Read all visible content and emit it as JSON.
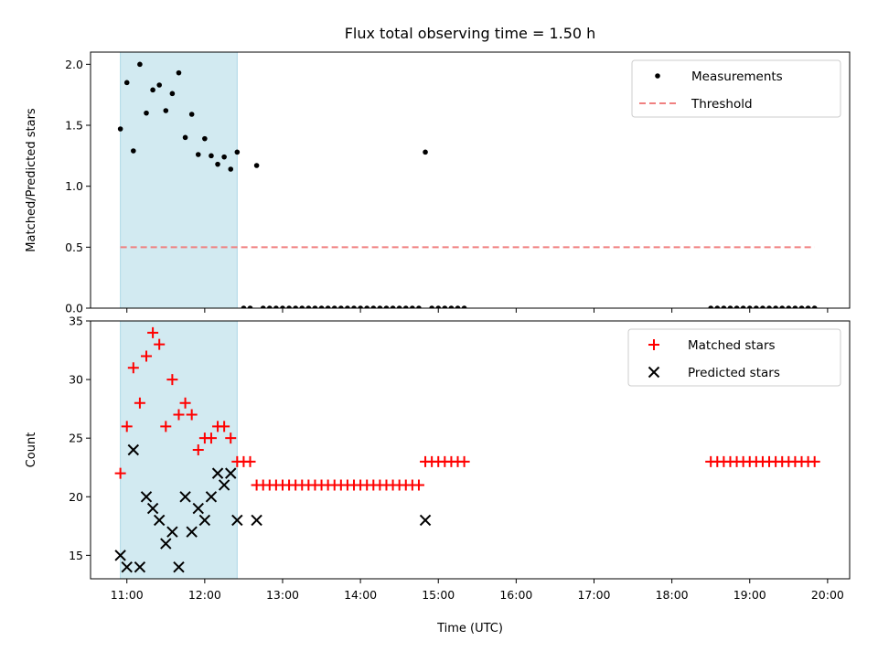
{
  "figure": {
    "title": "Flux total observing time = 1.50 h"
  },
  "chart_data": [
    {
      "type": "scatter",
      "ylabel": "Matched/Predicted stars",
      "xlabel": "",
      "x_ticks": [
        "11:00",
        "12:00",
        "13:00",
        "14:00",
        "15:00",
        "16:00",
        "17:00",
        "18:00",
        "19:00",
        "20:00"
      ],
      "y_ticks": [
        "0.0",
        "0.5",
        "1.0",
        "1.5",
        "2.0"
      ],
      "xlim": [
        "10:32",
        "20:17"
      ],
      "ylim": [
        0,
        2.1
      ],
      "legend_position": "top-right",
      "highlight_span": {
        "start": "10:55",
        "end": "12:25",
        "color": "#add8e6"
      },
      "series": [
        {
          "name": "Measurements",
          "marker": "dot",
          "color": "#000000",
          "points": [
            [
              "10:55",
              1.47
            ],
            [
              "11:00",
              1.85
            ],
            [
              "11:05",
              1.29
            ],
            [
              "11:10",
              2.0
            ],
            [
              "11:15",
              1.6
            ],
            [
              "11:20",
              1.79
            ],
            [
              "11:25",
              1.83
            ],
            [
              "11:30",
              1.62
            ],
            [
              "11:35",
              1.76
            ],
            [
              "11:40",
              1.93
            ],
            [
              "11:45",
              1.4
            ],
            [
              "11:50",
              1.59
            ],
            [
              "11:55",
              1.26
            ],
            [
              "12:00",
              1.39
            ],
            [
              "12:05",
              1.25
            ],
            [
              "12:10",
              1.18
            ],
            [
              "12:15",
              1.24
            ],
            [
              "12:20",
              1.14
            ],
            [
              "12:25",
              1.28
            ],
            [
              "12:30",
              0.0
            ],
            [
              "12:35",
              0.0
            ],
            [
              "12:40",
              1.17
            ],
            [
              "12:45",
              0.0
            ],
            [
              "12:50",
              0.0
            ],
            [
              "12:55",
              0.0
            ],
            [
              "13:00",
              0.0
            ],
            [
              "13:05",
              0.0
            ],
            [
              "13:10",
              0.0
            ],
            [
              "13:15",
              0.0
            ],
            [
              "13:20",
              0.0
            ],
            [
              "13:25",
              0.0
            ],
            [
              "13:30",
              0.0
            ],
            [
              "13:35",
              0.0
            ],
            [
              "13:40",
              0.0
            ],
            [
              "13:45",
              0.0
            ],
            [
              "13:50",
              0.0
            ],
            [
              "13:55",
              0.0
            ],
            [
              "14:00",
              0.0
            ],
            [
              "14:05",
              0.0
            ],
            [
              "14:10",
              0.0
            ],
            [
              "14:15",
              0.0
            ],
            [
              "14:20",
              0.0
            ],
            [
              "14:25",
              0.0
            ],
            [
              "14:30",
              0.0
            ],
            [
              "14:35",
              0.0
            ],
            [
              "14:40",
              0.0
            ],
            [
              "14:45",
              0.0
            ],
            [
              "14:50",
              1.28
            ],
            [
              "14:55",
              0.0
            ],
            [
              "15:00",
              0.0
            ],
            [
              "15:05",
              0.0
            ],
            [
              "15:10",
              0.0
            ],
            [
              "15:15",
              0.0
            ],
            [
              "15:20",
              0.0
            ],
            [
              "18:30",
              0.0
            ],
            [
              "18:35",
              0.0
            ],
            [
              "18:40",
              0.0
            ],
            [
              "18:45",
              0.0
            ],
            [
              "18:50",
              0.0
            ],
            [
              "18:55",
              0.0
            ],
            [
              "19:00",
              0.0
            ],
            [
              "19:05",
              0.0
            ],
            [
              "19:10",
              0.0
            ],
            [
              "19:15",
              0.0
            ],
            [
              "19:20",
              0.0
            ],
            [
              "19:25",
              0.0
            ],
            [
              "19:30",
              0.0
            ],
            [
              "19:35",
              0.0
            ],
            [
              "19:40",
              0.0
            ],
            [
              "19:45",
              0.0
            ],
            [
              "19:50",
              0.0
            ]
          ]
        },
        {
          "name": "Threshold",
          "marker": "dashed-line",
          "color": "#f08080",
          "points": [
            [
              "10:55",
              0.5
            ],
            [
              "19:50",
              0.5
            ]
          ]
        }
      ]
    },
    {
      "type": "scatter",
      "ylabel": "Count",
      "xlabel": "Time (UTC)",
      "x_ticks": [
        "11:00",
        "12:00",
        "13:00",
        "14:00",
        "15:00",
        "16:00",
        "17:00",
        "18:00",
        "19:00",
        "20:00"
      ],
      "y_ticks": [
        "15",
        "20",
        "25",
        "30",
        "35"
      ],
      "xlim": [
        "10:32",
        "20:17"
      ],
      "ylim": [
        13,
        35
      ],
      "legend_position": "top-right",
      "highlight_span": {
        "start": "10:55",
        "end": "12:25",
        "color": "#add8e6"
      },
      "series": [
        {
          "name": "Matched stars",
          "marker": "plus",
          "color": "#ff0000",
          "points": [
            [
              "10:55",
              22
            ],
            [
              "11:00",
              26
            ],
            [
              "11:05",
              31
            ],
            [
              "11:10",
              28
            ],
            [
              "11:15",
              32
            ],
            [
              "11:20",
              34
            ],
            [
              "11:25",
              33
            ],
            [
              "11:30",
              26
            ],
            [
              "11:35",
              30
            ],
            [
              "11:40",
              27
            ],
            [
              "11:45",
              28
            ],
            [
              "11:50",
              27
            ],
            [
              "11:55",
              24
            ],
            [
              "12:00",
              25
            ],
            [
              "12:05",
              25
            ],
            [
              "12:10",
              26
            ],
            [
              "12:15",
              26
            ],
            [
              "12:20",
              25
            ],
            [
              "12:25",
              23
            ],
            [
              "12:30",
              23
            ],
            [
              "12:35",
              23
            ],
            [
              "12:40",
              21
            ],
            [
              "12:45",
              21
            ],
            [
              "12:50",
              21
            ],
            [
              "12:55",
              21
            ],
            [
              "13:00",
              21
            ],
            [
              "13:05",
              21
            ],
            [
              "13:10",
              21
            ],
            [
              "13:15",
              21
            ],
            [
              "13:20",
              21
            ],
            [
              "13:25",
              21
            ],
            [
              "13:30",
              21
            ],
            [
              "13:35",
              21
            ],
            [
              "13:40",
              21
            ],
            [
              "13:45",
              21
            ],
            [
              "13:50",
              21
            ],
            [
              "13:55",
              21
            ],
            [
              "14:00",
              21
            ],
            [
              "14:05",
              21
            ],
            [
              "14:10",
              21
            ],
            [
              "14:15",
              21
            ],
            [
              "14:20",
              21
            ],
            [
              "14:25",
              21
            ],
            [
              "14:30",
              21
            ],
            [
              "14:35",
              21
            ],
            [
              "14:40",
              21
            ],
            [
              "14:45",
              21
            ],
            [
              "14:50",
              23
            ],
            [
              "14:55",
              23
            ],
            [
              "15:00",
              23
            ],
            [
              "15:05",
              23
            ],
            [
              "15:10",
              23
            ],
            [
              "15:15",
              23
            ],
            [
              "15:20",
              23
            ],
            [
              "18:30",
              23
            ],
            [
              "18:35",
              23
            ],
            [
              "18:40",
              23
            ],
            [
              "18:45",
              23
            ],
            [
              "18:50",
              23
            ],
            [
              "18:55",
              23
            ],
            [
              "19:00",
              23
            ],
            [
              "19:05",
              23
            ],
            [
              "19:10",
              23
            ],
            [
              "19:15",
              23
            ],
            [
              "19:20",
              23
            ],
            [
              "19:25",
              23
            ],
            [
              "19:30",
              23
            ],
            [
              "19:35",
              23
            ],
            [
              "19:40",
              23
            ],
            [
              "19:45",
              23
            ],
            [
              "19:50",
              23
            ]
          ]
        },
        {
          "name": "Predicted stars",
          "marker": "x",
          "color": "#000000",
          "points": [
            [
              "10:55",
              15
            ],
            [
              "11:00",
              14
            ],
            [
              "11:05",
              24
            ],
            [
              "11:10",
              14
            ],
            [
              "11:15",
              20
            ],
            [
              "11:20",
              19
            ],
            [
              "11:25",
              18
            ],
            [
              "11:30",
              16
            ],
            [
              "11:35",
              17
            ],
            [
              "11:40",
              14
            ],
            [
              "11:45",
              20
            ],
            [
              "11:50",
              17
            ],
            [
              "11:55",
              19
            ],
            [
              "12:00",
              18
            ],
            [
              "12:05",
              20
            ],
            [
              "12:10",
              22
            ],
            [
              "12:15",
              21
            ],
            [
              "12:20",
              22
            ],
            [
              "12:25",
              18
            ],
            [
              "12:40",
              18
            ],
            [
              "14:50",
              18
            ]
          ]
        }
      ]
    }
  ]
}
